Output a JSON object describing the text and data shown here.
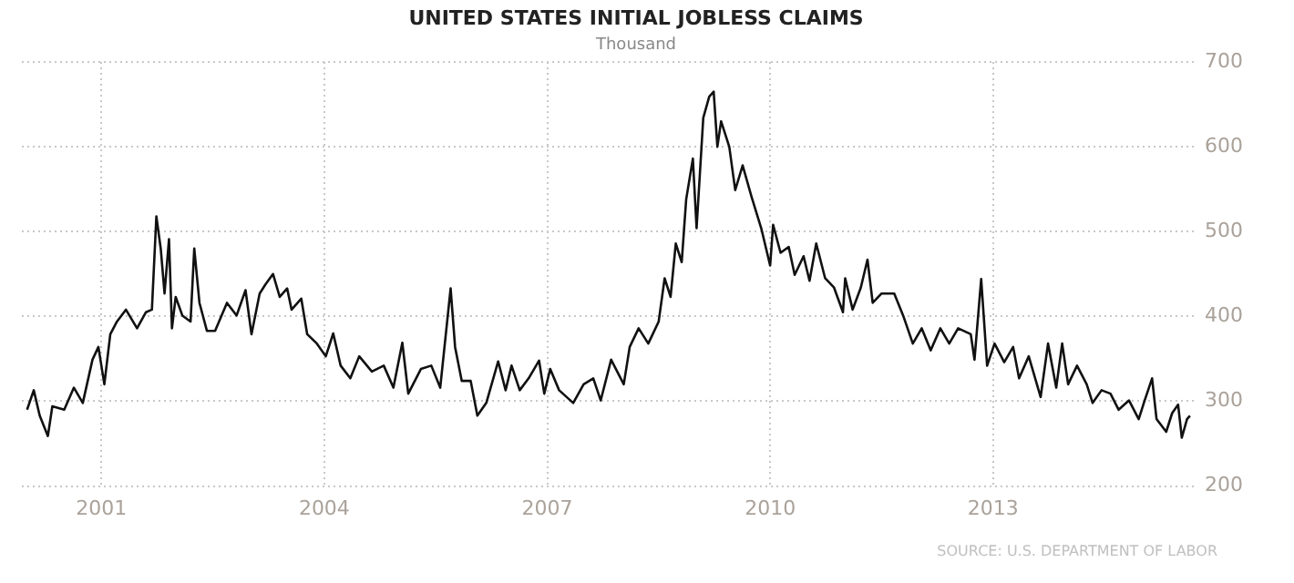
{
  "chart_data": {
    "type": "line",
    "title": "UNITED STATES INITIAL JOBLESS CLAIMS",
    "subtitle": "Thousand",
    "annotations": [
      "SOURCE: U.S. DEPARTMENT OF LABOR"
    ],
    "series": [
      {
        "color": "#111111",
        "x": [
          2000.0,
          2000.09,
          2000.17,
          2000.28,
          2000.34,
          2000.5,
          2000.63,
          2000.75,
          2000.88,
          2000.96,
          2001.04,
          2001.12,
          2001.21,
          2001.33,
          2001.48,
          2001.6,
          2001.68,
          2001.74,
          2001.8,
          2001.85,
          2001.91,
          2001.95,
          2002.0,
          2002.09,
          2002.2,
          2002.25,
          2002.32,
          2002.42,
          2002.53,
          2002.69,
          2002.82,
          2002.94,
          2003.02,
          2003.13,
          2003.21,
          2003.31,
          2003.4,
          2003.5,
          2003.56,
          2003.69,
          2003.77,
          2003.9,
          2004.02,
          2004.12,
          2004.22,
          2004.35,
          2004.47,
          2004.64,
          2004.8,
          2004.93,
          2005.05,
          2005.13,
          2005.3,
          2005.44,
          2005.56,
          2005.7,
          2005.76,
          2005.85,
          2005.97,
          2006.06,
          2006.18,
          2006.34,
          2006.44,
          2006.52,
          2006.63,
          2006.75,
          2006.89,
          2006.96,
          2007.04,
          2007.16,
          2007.35,
          2007.49,
          2007.62,
          2007.72,
          2007.86,
          2008.03,
          2008.11,
          2008.23,
          2008.36,
          2008.5,
          2008.58,
          2008.66,
          2008.73,
          2008.81,
          2008.87,
          2008.96,
          2009.01,
          2009.1,
          2009.18,
          2009.24,
          2009.29,
          2009.34,
          2009.45,
          2009.53,
          2009.63,
          2009.75,
          2009.88,
          2010.0,
          2010.04,
          2010.14,
          2010.25,
          2010.33,
          2010.45,
          2010.53,
          2010.62,
          2010.74,
          2010.86,
          2010.98,
          2011.01,
          2011.11,
          2011.22,
          2011.31,
          2011.38,
          2011.5,
          2011.67,
          2011.79,
          2011.92,
          2012.04,
          2012.16,
          2012.29,
          2012.41,
          2012.53,
          2012.7,
          2012.75,
          2012.84,
          2012.92,
          2013.02,
          2013.15,
          2013.27,
          2013.35,
          2013.48,
          2013.64,
          2013.74,
          2013.85,
          2013.93,
          2014.01,
          2014.13,
          2014.26,
          2014.34,
          2014.46,
          2014.58,
          2014.69,
          2014.83,
          2014.96,
          2015.04,
          2015.14,
          2015.2,
          2015.33,
          2015.41,
          2015.49,
          2015.54,
          2015.61,
          2015.65
        ],
        "values": [
          290,
          313,
          283,
          259,
          294,
          290,
          316,
          298,
          349,
          364,
          320,
          379,
          394,
          408,
          386,
          405,
          408,
          518,
          479,
          427,
          491,
          386,
          423,
          401,
          394,
          480,
          416,
          383,
          383,
          416,
          401,
          431,
          379,
          427,
          438,
          450,
          423,
          433,
          408,
          421,
          379,
          368,
          353,
          380,
          342,
          327,
          353,
          335,
          342,
          316,
          369,
          309,
          338,
          342,
          316,
          433,
          364,
          324,
          324,
          283,
          298,
          347,
          313,
          342,
          313,
          327,
          348,
          309,
          338,
          313,
          298,
          320,
          327,
          301,
          349,
          320,
          364,
          386,
          368,
          394,
          445,
          423,
          486,
          464,
          538,
          586,
          504,
          634,
          659,
          665,
          600,
          630,
          600,
          549,
          578,
          541,
          504,
          460,
          508,
          475,
          482,
          449,
          471,
          442,
          486,
          445,
          434,
          405,
          445,
          408,
          434,
          467,
          416,
          427,
          427,
          401,
          368,
          386,
          360,
          386,
          368,
          386,
          379,
          349,
          444,
          342,
          368,
          346,
          364,
          327,
          353,
          305,
          368,
          316,
          368,
          320,
          342,
          320,
          298,
          313,
          309,
          290,
          301,
          279,
          301,
          327,
          279,
          264,
          286,
          296,
          257,
          279,
          283
        ]
      }
    ],
    "xlim": [
      1999.93,
      2015.75
    ],
    "xticks": [
      2001,
      2004,
      2007,
      2010,
      2013
    ],
    "ylim": [
      200,
      700
    ],
    "yticks": [
      200,
      300,
      400,
      500,
      600,
      700
    ],
    "grid": true,
    "marker": "none",
    "line_style": "solid"
  }
}
